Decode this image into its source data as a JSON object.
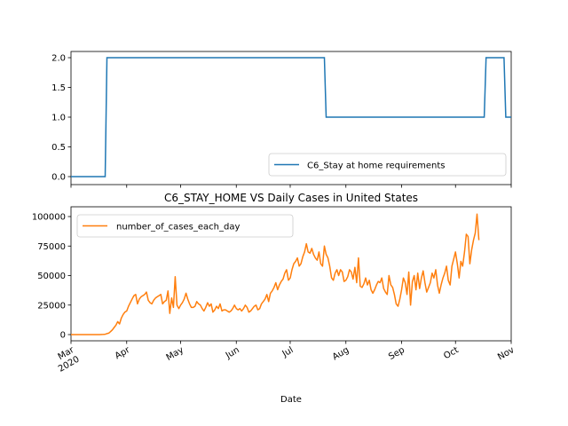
{
  "chart_data": [
    {
      "type": "line",
      "title": "",
      "xlabel": "",
      "ylabel": "",
      "ylim": [
        0,
        2
      ],
      "yticks": [
        "0.0",
        "0.5",
        "1.0",
        "1.5",
        "2.0"
      ],
      "xlim": [
        "2020-03-01",
        "2020-11-01"
      ],
      "series": [
        {
          "name": "C6_Stay at home requirements",
          "color": "#1f77b4",
          "x": [
            "2020-03-01",
            "2020-03-20",
            "2020-03-21",
            "2020-07-20",
            "2020-07-21",
            "2020-10-17",
            "2020-10-18",
            "2020-10-28",
            "2020-10-29",
            "2020-11-01"
          ],
          "values": [
            0,
            0,
            2,
            2,
            1,
            1,
            2,
            2,
            1,
            1
          ]
        }
      ],
      "legend": "lower-right"
    },
    {
      "type": "line",
      "title": "C6_STAY_HOME VS Daily Cases in United States",
      "xlabel": "Date",
      "ylabel": "",
      "ylim": [
        0,
        100000
      ],
      "yticks": [
        "0",
        "25000",
        "50000",
        "75000",
        "100000"
      ],
      "xlim": [
        "2020-03-01",
        "2020-11-01"
      ],
      "xticks": [
        "Mar\n2020",
        "Apr",
        "May",
        "Jun",
        "Jul",
        "Aug",
        "Sep",
        "Oct",
        "Nov"
      ],
      "series": [
        {
          "name": "number_of_cases_each_day",
          "color": "#ff7f0e",
          "x_start": "2020-03-01",
          "values": [
            0,
            0,
            0,
            0,
            0,
            0,
            0,
            0,
            0,
            0,
            0,
            0,
            0,
            0,
            0,
            0,
            0,
            50,
            150,
            300,
            800,
            1200,
            2500,
            4000,
            6000,
            8000,
            11000,
            9000,
            14000,
            17000,
            19000,
            20000,
            24000,
            27000,
            30000,
            33000,
            34000,
            26000,
            30000,
            32000,
            33000,
            34000,
            36000,
            29000,
            27000,
            26000,
            29000,
            31000,
            32000,
            33000,
            34000,
            26000,
            28000,
            29000,
            37000,
            18000,
            31000,
            23000,
            49000,
            25000,
            22000,
            25000,
            27000,
            30000,
            35000,
            30000,
            26000,
            23000,
            23000,
            24000,
            28000,
            26000,
            25000,
            22000,
            20000,
            23000,
            27000,
            24000,
            26000,
            19000,
            21000,
            24000,
            22000,
            26000,
            20000,
            21000,
            21000,
            20000,
            19000,
            20000,
            22000,
            25000,
            22000,
            21000,
            22000,
            20000,
            22000,
            25000,
            23000,
            19000,
            20000,
            22000,
            24000,
            25000,
            21000,
            22000,
            26000,
            28000,
            30000,
            34000,
            28000,
            35000,
            37000,
            40000,
            44000,
            38000,
            42000,
            45000,
            47000,
            52000,
            55000,
            46000,
            48000,
            55000,
            60000,
            62000,
            65000,
            58000,
            60000,
            66000,
            70000,
            77000,
            70000,
            69000,
            73000,
            68000,
            65000,
            63000,
            70000,
            60000,
            58000,
            75000,
            68000,
            65000,
            58000,
            48000,
            46000,
            52000,
            55000,
            50000,
            55000,
            53000,
            45000,
            46000,
            49000,
            55000,
            53000,
            47000,
            57000,
            44000,
            65000,
            41000,
            40000,
            43000,
            48000,
            42000,
            46000,
            38000,
            35000,
            38000,
            42000,
            45000,
            44000,
            48000,
            39000,
            36000,
            34000,
            50000,
            42000,
            40000,
            34000,
            26000,
            24000,
            30000,
            38000,
            48000,
            44000,
            34000,
            53000,
            25000,
            45000,
            50000,
            38000,
            52000,
            39000,
            48000,
            54000,
            44000,
            36000,
            40000,
            44000,
            52000,
            48000,
            55000,
            42000,
            35000,
            42000,
            48000,
            52000,
            58000,
            46000,
            42000,
            58000,
            64000,
            70000,
            60000,
            48000,
            62000,
            58000,
            70000,
            85000,
            83000,
            60000,
            72000,
            80000,
            86000,
            102000,
            80000
          ]
        }
      ],
      "legend": "upper-left"
    }
  ]
}
